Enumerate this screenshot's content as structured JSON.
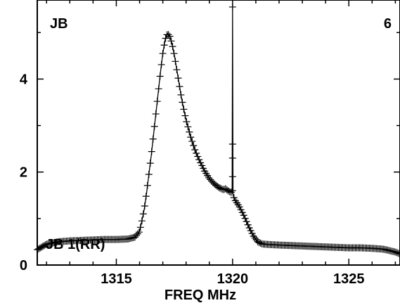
{
  "chart_data": {
    "type": "line",
    "title_left": "JB",
    "title_right": "6",
    "series_label": "JB 1(RR)",
    "xlabel": "FREQ MHz",
    "xlim": [
      1311.6,
      1327.2
    ],
    "ylim": [
      0,
      5.7
    ],
    "x_ticks": [
      1315,
      1320,
      1325
    ],
    "y_ticks": [
      0,
      2,
      4
    ],
    "markers": "plus",
    "grid": false,
    "series": [
      {
        "points": [
          [
            1311.6,
            0.33
          ],
          [
            1312.0,
            0.45
          ],
          [
            1312.5,
            0.5
          ],
          [
            1313.0,
            0.52
          ],
          [
            1313.5,
            0.53
          ],
          [
            1314.0,
            0.54
          ],
          [
            1314.5,
            0.55
          ],
          [
            1315.0,
            0.55
          ],
          [
            1315.5,
            0.56
          ],
          [
            1315.8,
            0.6
          ],
          [
            1316.0,
            0.72
          ],
          [
            1316.1,
            0.95
          ],
          [
            1316.2,
            1.2
          ],
          [
            1316.3,
            1.55
          ],
          [
            1316.4,
            1.95
          ],
          [
            1316.5,
            2.35
          ],
          [
            1316.6,
            2.8
          ],
          [
            1316.7,
            3.25
          ],
          [
            1316.8,
            3.7
          ],
          [
            1316.9,
            4.15
          ],
          [
            1317.0,
            4.55
          ],
          [
            1317.1,
            4.85
          ],
          [
            1317.2,
            4.98
          ],
          [
            1317.3,
            4.92
          ],
          [
            1317.4,
            4.75
          ],
          [
            1317.5,
            4.5
          ],
          [
            1317.6,
            4.2
          ],
          [
            1317.7,
            3.9
          ],
          [
            1317.8,
            3.6
          ],
          [
            1317.9,
            3.35
          ],
          [
            1318.0,
            3.12
          ],
          [
            1318.2,
            2.75
          ],
          [
            1318.4,
            2.45
          ],
          [
            1318.6,
            2.22
          ],
          [
            1318.8,
            2.02
          ],
          [
            1319.0,
            1.86
          ],
          [
            1319.2,
            1.75
          ],
          [
            1319.4,
            1.67
          ],
          [
            1319.6,
            1.62
          ],
          [
            1319.7,
            1.64
          ],
          [
            1319.8,
            1.6
          ],
          [
            1319.9,
            1.57
          ],
          [
            1319.98,
            1.56
          ],
          [
            1320.0,
            5.55
          ],
          [
            1320.02,
            1.5
          ],
          [
            1320.1,
            1.4
          ],
          [
            1320.3,
            1.25
          ],
          [
            1320.5,
            1.05
          ],
          [
            1320.7,
            0.82
          ],
          [
            1320.9,
            0.62
          ],
          [
            1321.1,
            0.49
          ],
          [
            1321.3,
            0.45
          ],
          [
            1321.6,
            0.44
          ],
          [
            1322.0,
            0.43
          ],
          [
            1322.5,
            0.42
          ],
          [
            1323.0,
            0.41
          ],
          [
            1323.5,
            0.4
          ],
          [
            1324.0,
            0.39
          ],
          [
            1324.5,
            0.38
          ],
          [
            1325.0,
            0.37
          ],
          [
            1325.5,
            0.37
          ],
          [
            1326.0,
            0.36
          ],
          [
            1326.5,
            0.34
          ],
          [
            1327.0,
            0.28
          ],
          [
            1327.2,
            0.24
          ]
        ]
      }
    ]
  }
}
